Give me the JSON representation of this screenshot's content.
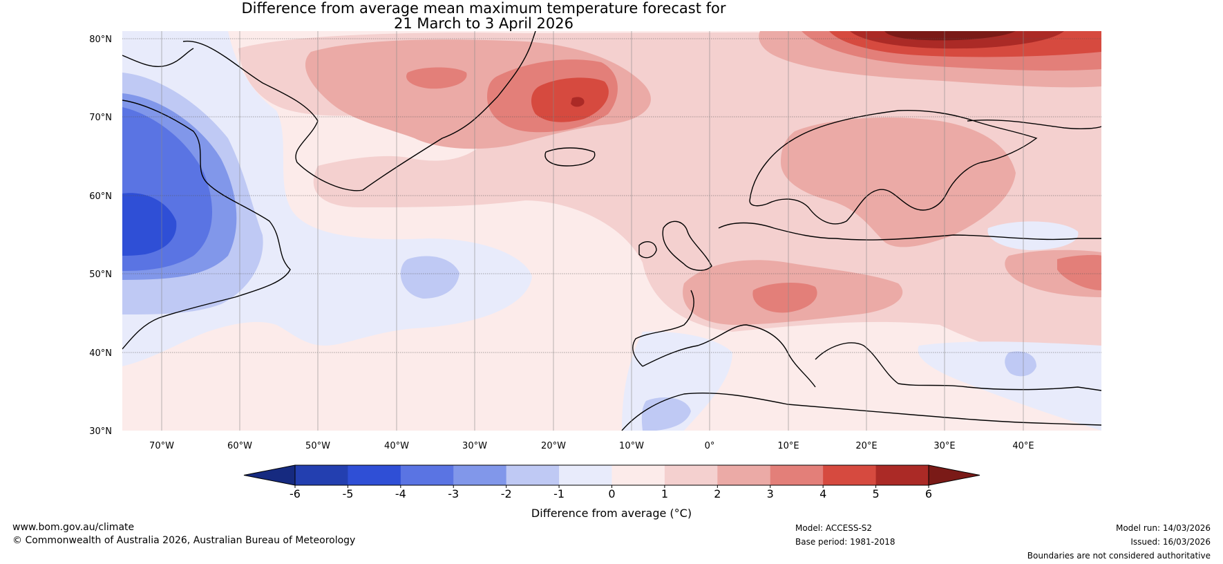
{
  "title": {
    "line1": "Difference from average mean maximum temperature forecast for",
    "line2": "21 March to 3 April 2026"
  },
  "map": {
    "lat_ticks": [
      "80°N",
      "70°N",
      "60°N",
      "50°N",
      "40°N",
      "30°N"
    ],
    "lon_ticks": [
      "70°W",
      "60°W",
      "50°W",
      "40°W",
      "30°W",
      "20°W",
      "10°W",
      "0°",
      "10°E",
      "20°E",
      "30°E",
      "40°E"
    ],
    "lat_range": [
      30,
      81
    ],
    "lon_range": [
      -75,
      50
    ],
    "anomaly_regions": [
      {
        "label": "Greenland Sea / east Greenland warm anomaly",
        "lon": -17,
        "lat": 71,
        "value": 5
      },
      {
        "label": "Barents Sea warm anomaly",
        "lon": 22,
        "lat": 80,
        "value": 6
      },
      {
        "label": "Alps warm anomaly",
        "lon": 9,
        "lat": 47,
        "value": 4
      },
      {
        "label": "Labrador cold anomaly",
        "lon": -72,
        "lat": 55,
        "value": -5
      },
      {
        "label": "Mid-Atlantic cold anomaly",
        "lon": -36,
        "lat": 50,
        "value": -2
      },
      {
        "label": "Russia east warm anomaly",
        "lon": 47,
        "lat": 50,
        "value": 4
      }
    ]
  },
  "colorbar": {
    "labels": [
      "-6",
      "-5",
      "-4",
      "-3",
      "-2",
      "-1",
      "0",
      "1",
      "2",
      "3",
      "4",
      "5",
      "6"
    ],
    "colors": [
      "#162a80",
      "#233fb0",
      "#2f4fd6",
      "#5a74e3",
      "#8197ea",
      "#bfc9f4",
      "#e8ebfb",
      "#fcebea",
      "#f4d0cf",
      "#ebaaa6",
      "#e37f79",
      "#d64a3f",
      "#ab2a26",
      "#7a1a17"
    ],
    "xlabel": "Difference from average (°C)"
  },
  "footer": {
    "website": "www.bom.gov.au/climate",
    "copyright": "© Commonwealth of Australia 2026, Australian Bureau of Meteorology",
    "model": "Model: ACCESS-S2",
    "base_period": "Base period: 1981-2018",
    "model_run": "Model run: 14/03/2026",
    "issued": "Issued: 16/03/2026",
    "disclaimer": "Boundaries are not considered authoritative"
  }
}
